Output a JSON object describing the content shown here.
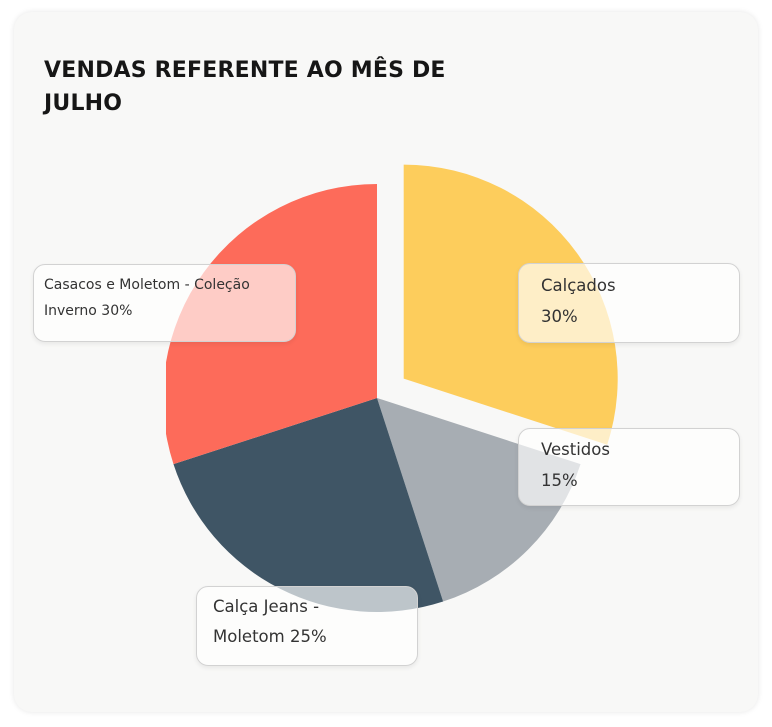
{
  "chart_data": {
    "type": "pie",
    "title": "VENDAS REFERENTE AO MÊS DE JULHO",
    "slices": [
      {
        "label": "Calçados",
        "value": 30,
        "display": "Calçados\n30%",
        "color": "#fdcd5c",
        "exploded": true
      },
      {
        "label": "Vestidos",
        "value": 15,
        "display": "Vestidos\n15%",
        "color": "#a7adb3",
        "exploded": false
      },
      {
        "label": "Calça Jeans - Moletom",
        "value": 25,
        "display": "Calça Jeans -\nMoletom 25%",
        "color": "#3f5565",
        "exploded": false
      },
      {
        "label": "Casacos e Moletom - Coleção Inverno",
        "value": 30,
        "display": "Casacos e Moletom - Coleção\nInverno 30%",
        "color": "#fd6b5a",
        "exploded": false
      }
    ]
  }
}
